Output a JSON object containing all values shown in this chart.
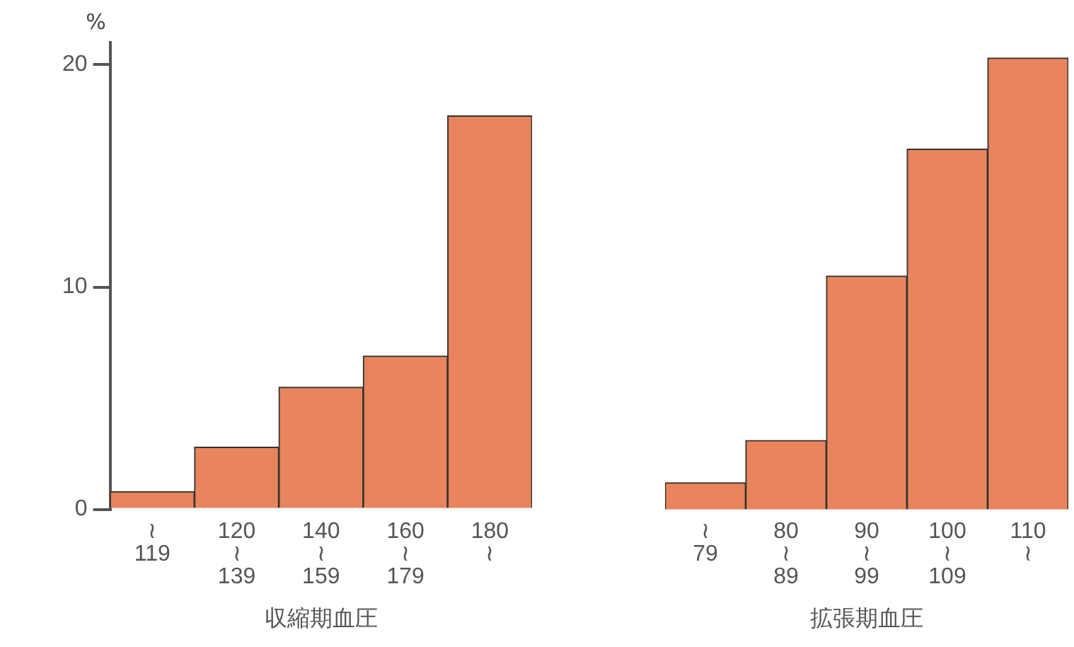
{
  "chart_data": [
    {
      "type": "bar",
      "ylabel": "%",
      "xlabel": "収縮期血圧",
      "categories": [
        "≀\n119",
        "120\n≀\n139",
        "140\n≀\n159",
        "160\n≀\n179",
        "180\n≀"
      ],
      "values": [
        0.8,
        2.8,
        5.5,
        6.9,
        17.7
      ],
      "color": "#e8855c",
      "ylim": [
        0,
        21
      ],
      "yticks": [
        0,
        10,
        20
      ],
      "grid": false
    },
    {
      "type": "bar",
      "xlabel": "拡張期血圧",
      "categories": [
        "≀\n79",
        "80\n≀\n89",
        "90\n≀\n99",
        "100\n≀\n109",
        "110\n≀"
      ],
      "values": [
        1.2,
        3.1,
        10.5,
        16.2,
        20.3
      ],
      "color": "#e8855c",
      "yticks": [
        0,
        10,
        20
      ],
      "grid": false,
      "tick_labels": "x"
    }
  ]
}
